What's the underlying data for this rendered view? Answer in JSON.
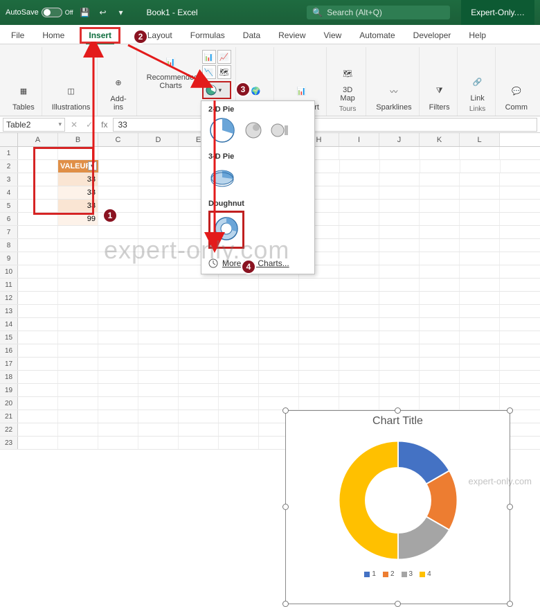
{
  "titlebar": {
    "autosave_label": "AutoSave",
    "autosave_state": "Off",
    "doc_name": "Book1 - Excel",
    "search_placeholder": "Search (Alt+Q)",
    "brand": "Expert-Only.…"
  },
  "tabs": {
    "file": "File",
    "home": "Home",
    "insert": "Insert",
    "pagelayout": "ge Layout",
    "formulas": "Formulas",
    "data": "Data",
    "review": "Review",
    "view": "View",
    "automate": "Automate",
    "developer": "Developer",
    "help": "Help"
  },
  "ribbon": {
    "tables": "Tables",
    "illustrations": "Illustrations",
    "addins": "Add-ins",
    "recommended": "Recommended Charts",
    "maps": "Maps",
    "pivotchart": "PivotChart",
    "map3d": "3D Map",
    "sparklines": "Sparklines",
    "filters": "Filters",
    "link": "Link",
    "comm": "Comm",
    "group_tours": "Tours",
    "group_links": "Links"
  },
  "piedrop": {
    "h2d": "2-D Pie",
    "h3d": "3-D Pie",
    "hdo": "Doughnut",
    "more": "More Pie Charts..."
  },
  "fbar": {
    "name": "Table2",
    "fx": "fx",
    "val": "33"
  },
  "columns": [
    "A",
    "B",
    "C",
    "D",
    "E",
    "F",
    "G",
    "H",
    "I",
    "J",
    "K",
    "L"
  ],
  "rowcount": 23,
  "table": {
    "header": "VALEURS",
    "rows": [
      "33",
      "33",
      "33",
      "99"
    ],
    "header_bg": "#e08f47",
    "band1": "#fae5d3",
    "band2": "#fdf2e9"
  },
  "chart": {
    "title": "Chart Title",
    "type": "doughnut",
    "values": [
      33,
      33,
      33,
      99
    ],
    "colors": [
      "#4472c4",
      "#ed7d31",
      "#a5a5a5",
      "#ffc000"
    ],
    "hole_ratio": 0.55,
    "background": "#ffffff",
    "legend_labels": [
      "1",
      "2",
      "3",
      "4"
    ],
    "title_fontsize": 16,
    "legend_fontsize": 10
  },
  "callouts": {
    "badge_color": "#8a1321",
    "arrow_color": "#e31b1b"
  },
  "watermark": "expert-only.com"
}
